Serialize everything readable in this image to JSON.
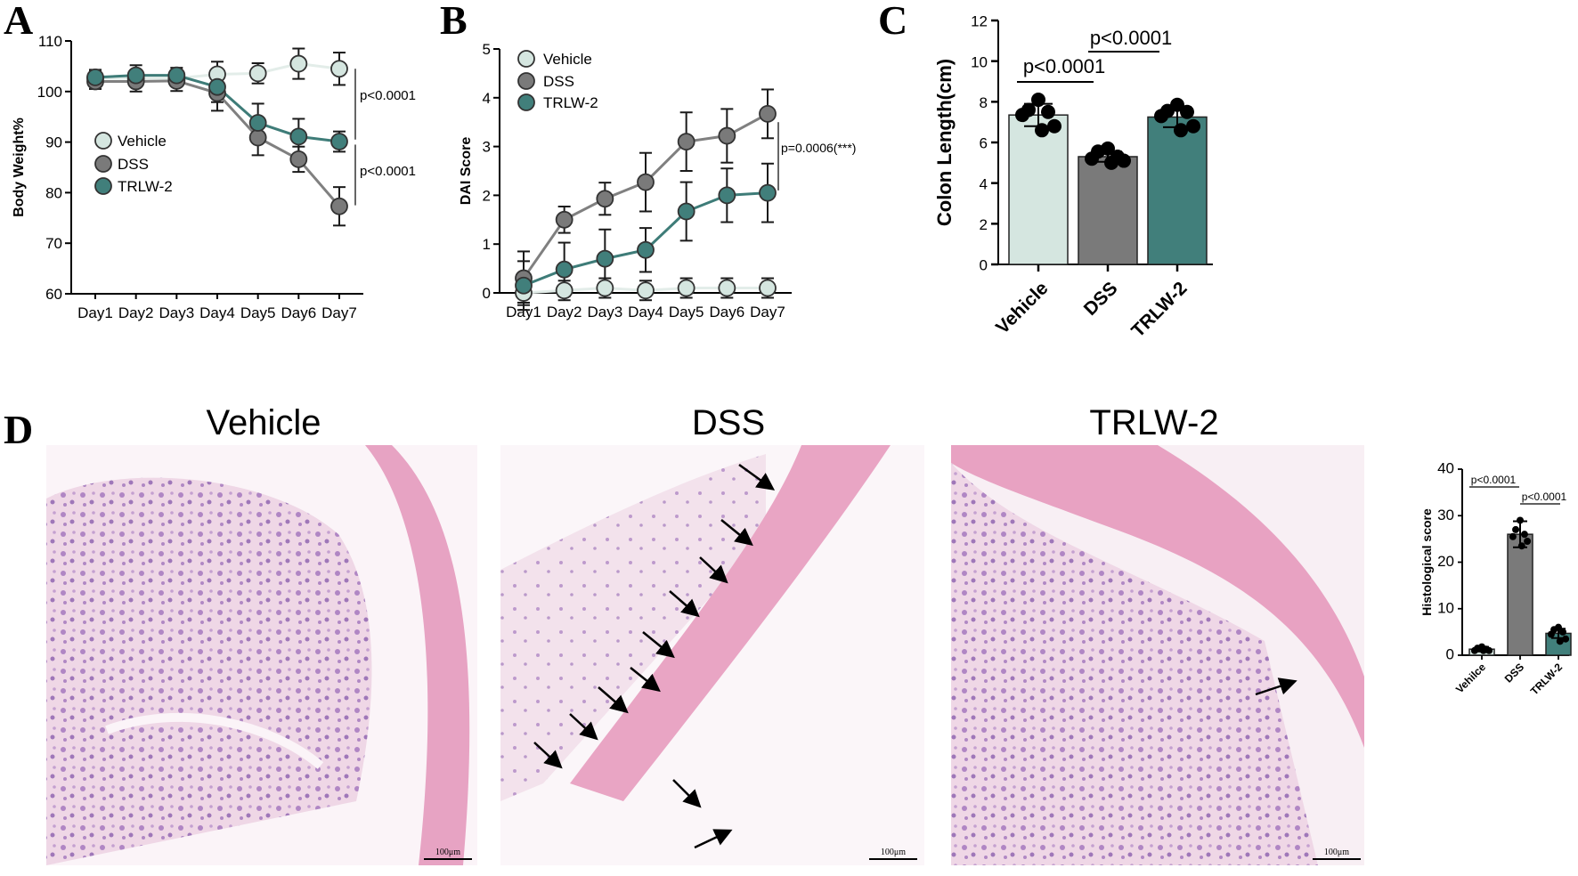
{
  "colors": {
    "vehicle": "#d5e6e0",
    "dss": "#7a7a7a",
    "trlw2": "#417f7b",
    "line_vehicle": "#e3ede9",
    "line_dss": "#808080",
    "line_trlw2": "#3e7c78",
    "tissue_pink": "#e9a7c4",
    "tissue_purple": "#8d5fae",
    "tissue_bg": "#f7f0f4"
  },
  "panels": {
    "a": "A",
    "b": "B",
    "c": "C",
    "d": "D"
  },
  "images": [
    {
      "title": "Vehicle",
      "scale": "100μm"
    },
    {
      "title": "DSS",
      "scale": "100μm"
    },
    {
      "title": "TRLW-2",
      "scale": "100μm"
    }
  ],
  "chart_data": [
    {
      "id": "A",
      "type": "line",
      "ylabel": "Body Weight%",
      "xlabel": "",
      "categories": [
        "Day1",
        "Day2",
        "Day3",
        "Day4",
        "Day5",
        "Day6",
        "Day7"
      ],
      "ylim": [
        60,
        110
      ],
      "yticks": [
        60,
        70,
        80,
        90,
        100,
        110
      ],
      "series": [
        {
          "name": "Vehicle",
          "values": [
            102.6,
            102.6,
            102.6,
            103.4,
            103.6,
            105.5,
            104.5
          ],
          "errors": [
            1.5,
            1.5,
            1.5,
            2.5,
            2.0,
            3.0,
            3.2
          ]
        },
        {
          "name": "DSS",
          "values": [
            102.0,
            102.0,
            102.1,
            99.7,
            90.9,
            86.6,
            77.3
          ],
          "errors": [
            1.5,
            2.0,
            2.0,
            3.5,
            3.5,
            2.5,
            3.8
          ]
        },
        {
          "name": "TRLW-2",
          "values": [
            102.8,
            103.2,
            103.2,
            100.9,
            93.8,
            91.1,
            90.1
          ],
          "errors": [
            1.5,
            2.0,
            1.5,
            3.0,
            3.8,
            3.5,
            2.0
          ]
        }
      ],
      "legend": "center-left",
      "annotations": [
        "p<0.0001",
        "p<0.0001"
      ]
    },
    {
      "id": "B",
      "type": "line",
      "ylabel": "DAI Score",
      "xlabel": "",
      "categories": [
        "Day1",
        "Day2",
        "Day3",
        "Day4",
        "Day5",
        "Day6",
        "Day7"
      ],
      "ylim": [
        0,
        5
      ],
      "yticks": [
        0,
        1,
        2,
        3,
        4,
        5
      ],
      "series": [
        {
          "name": "Vehicle",
          "values": [
            0.0,
            0.05,
            0.1,
            0.05,
            0.1,
            0.1,
            0.1
          ],
          "errors": [
            0.2,
            0.2,
            0.2,
            0.2,
            0.2,
            0.2,
            0.2
          ]
        },
        {
          "name": "DSS",
          "values": [
            0.3,
            1.5,
            1.93,
            2.27,
            3.1,
            3.22,
            3.67
          ],
          "errors": [
            0.55,
            0.27,
            0.33,
            0.6,
            0.6,
            0.55,
            0.5
          ]
        },
        {
          "name": "TRLW-2",
          "values": [
            0.15,
            0.48,
            0.7,
            0.88,
            1.67,
            2.0,
            2.05
          ],
          "errors": [
            0.5,
            0.55,
            0.6,
            0.45,
            0.6,
            0.55,
            0.6
          ]
        }
      ],
      "legend": "top-left",
      "annotations": [
        "p=0.0006(***)"
      ]
    },
    {
      "id": "C",
      "type": "bar",
      "ylabel": "Colon Length(cm)",
      "xlabel": "",
      "categories": [
        "Vehicle",
        "DSS",
        "TRLW-2"
      ],
      "ylim": [
        0,
        12
      ],
      "yticks": [
        0,
        2,
        4,
        6,
        8,
        10,
        12
      ],
      "values": [
        7.35,
        5.3,
        7.25
      ],
      "errors": [
        0.55,
        0.25,
        0.5
      ],
      "points": [
        [
          8.1,
          7.6,
          7.5,
          7.35,
          6.8,
          6.6
        ],
        [
          5.7,
          5.55,
          5.3,
          5.2,
          5.1,
          5.0
        ],
        [
          7.85,
          7.55,
          7.5,
          7.3,
          6.8,
          6.6
        ]
      ],
      "annotations": [
        "p<0.0001",
        "p<0.0001"
      ]
    },
    {
      "id": "D",
      "type": "bar",
      "ylabel": "Histological score",
      "xlabel": "",
      "categories": [
        "Vehilce",
        "DSS",
        "TRLW-2"
      ],
      "ylim": [
        0,
        40
      ],
      "yticks": [
        0,
        10,
        20,
        30,
        40
      ],
      "values": [
        1.3,
        26.0,
        4.7
      ],
      "errors": [
        0.5,
        2.8,
        1.0
      ],
      "points": [
        [
          1.8,
          1.5,
          1.3,
          1.0,
          1.0,
          1.0
        ],
        [
          29.0,
          27.0,
          26.0,
          25.5,
          24.5,
          23.5
        ],
        [
          6.0,
          5.5,
          5.0,
          4.5,
          3.5,
          3.0
        ]
      ],
      "annotations": [
        "p<0.0001",
        "p<0.0001"
      ]
    }
  ]
}
